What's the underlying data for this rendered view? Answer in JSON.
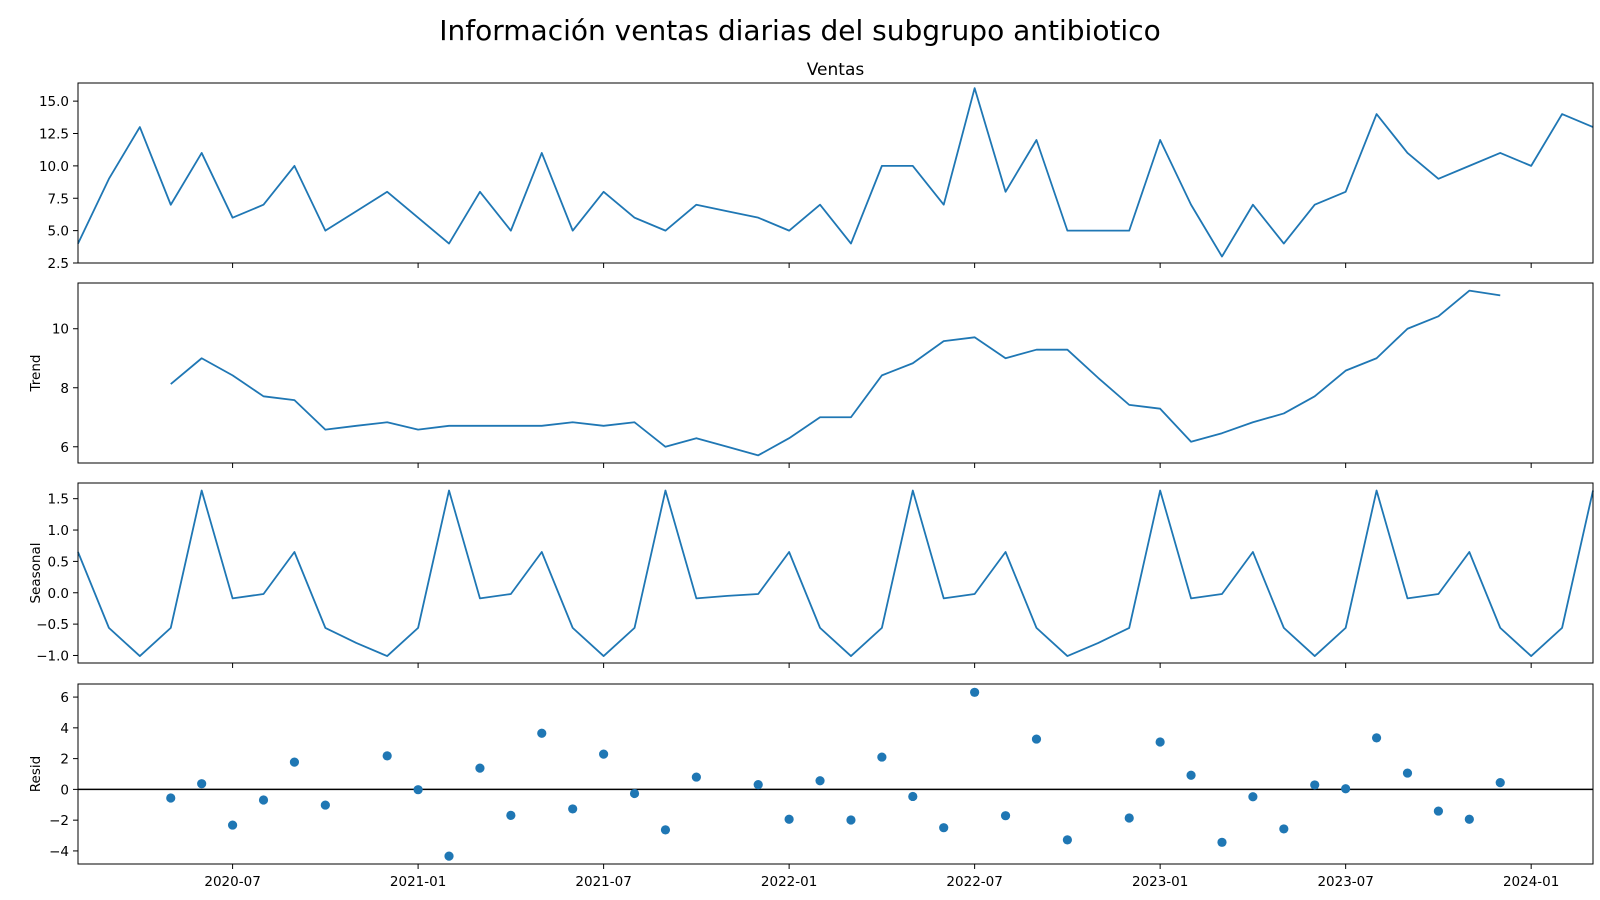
{
  "figure": {
    "title": "Información ventas diarias del subgrupo antibiotico"
  },
  "chart_data": [
    {
      "type": "line",
      "title": "Ventas",
      "ylabel": "",
      "xlabel": "",
      "ylim": [
        2.5,
        16.4
      ],
      "yticks": [
        "2.5",
        "5.0",
        "7.5",
        "10.0",
        "12.5",
        "15.0"
      ],
      "x": [
        "2020-02",
        "2020-03",
        "2020-04",
        "2020-05",
        "2020-06",
        "2020-07",
        "2020-08",
        "2020-09",
        "2020-10",
        "2020-11",
        "2020-12",
        "2021-01",
        "2021-02",
        "2021-03",
        "2021-04",
        "2021-05",
        "2021-06",
        "2021-07",
        "2021-08",
        "2021-09",
        "2021-10",
        "2021-11",
        "2021-12",
        "2022-01",
        "2022-02",
        "2022-03",
        "2022-04",
        "2022-05",
        "2022-06",
        "2022-07",
        "2022-08",
        "2022-09",
        "2022-10",
        "2022-11",
        "2022-12",
        "2023-01",
        "2023-02",
        "2023-03",
        "2023-04",
        "2023-05",
        "2023-06",
        "2023-07",
        "2023-08",
        "2023-09",
        "2023-10",
        "2023-11",
        "2023-12",
        "2024-01",
        "2024-02",
        "2024-03"
      ],
      "values": [
        4,
        9,
        13,
        7,
        11,
        6,
        7,
        10,
        5,
        6.5,
        8,
        6,
        4,
        8,
        5,
        11,
        5,
        8,
        6,
        5,
        7,
        6.5,
        6,
        5,
        7,
        4,
        10,
        10,
        7,
        16,
        8,
        12,
        5,
        5,
        5,
        12,
        7,
        3,
        7,
        4,
        7,
        8,
        14,
        11,
        9,
        10,
        11,
        10,
        14,
        13
      ]
    },
    {
      "type": "line",
      "title": "",
      "ylabel": "Trend",
      "xlabel": "",
      "ylim": [
        5.45,
        11.55
      ],
      "yticks": [
        "6",
        "8",
        "10"
      ],
      "x": [
        "2020-05",
        "2020-06",
        "2020-07",
        "2020-08",
        "2020-09",
        "2020-10",
        "2020-11",
        "2020-12",
        "2021-01",
        "2021-02",
        "2021-03",
        "2021-04",
        "2021-05",
        "2021-06",
        "2021-07",
        "2021-08",
        "2021-09",
        "2021-10",
        "2021-11",
        "2021-12",
        "2022-01",
        "2022-02",
        "2022-03",
        "2022-04",
        "2022-05",
        "2022-06",
        "2022-07",
        "2022-08",
        "2022-09",
        "2022-10",
        "2022-11",
        "2022-12",
        "2023-01",
        "2023-02",
        "2023-03",
        "2023-04",
        "2023-05",
        "2023-06",
        "2023-07",
        "2023-08",
        "2023-09",
        "2023-10",
        "2023-11",
        "2023-12"
      ],
      "values": [
        8.125,
        9.0,
        8.42,
        7.71,
        7.58,
        6.58,
        6.71,
        6.83,
        6.58,
        6.71,
        6.71,
        6.71,
        6.71,
        6.83,
        6.71,
        6.83,
        6.0,
        6.29,
        6.0,
        5.71,
        6.29,
        7.0,
        7.0,
        8.42,
        8.83,
        9.58,
        9.71,
        9.0,
        9.29,
        9.29,
        8.33,
        7.42,
        7.29,
        6.17,
        6.46,
        6.83,
        7.13,
        7.71,
        8.58,
        9.0,
        10.0,
        10.42,
        11.29,
        11.13
      ]
    },
    {
      "type": "line",
      "title": "",
      "ylabel": "Seasonal",
      "xlabel": "",
      "ylim": [
        -1.12,
        1.75
      ],
      "yticks": [
        "−1.0",
        "−0.5",
        "0.0",
        "0.5",
        "1.0",
        "1.5"
      ],
      "x": [
        "2020-02",
        "2020-03",
        "2020-04",
        "2020-05",
        "2020-06",
        "2020-07",
        "2020-08",
        "2020-09",
        "2020-10",
        "2020-11",
        "2020-12",
        "2021-01",
        "2021-02",
        "2021-03",
        "2021-04",
        "2021-05",
        "2021-06",
        "2021-07",
        "2021-08",
        "2021-09",
        "2021-10",
        "2021-11",
        "2021-12",
        "2022-01",
        "2022-02",
        "2022-03",
        "2022-04",
        "2022-05",
        "2022-06",
        "2022-07",
        "2022-08",
        "2022-09",
        "2022-10",
        "2022-11",
        "2022-12",
        "2023-01",
        "2023-02",
        "2023-03",
        "2023-04",
        "2023-05",
        "2023-06",
        "2023-07",
        "2023-08",
        "2023-09",
        "2023-10",
        "2023-11",
        "2023-12",
        "2024-01",
        "2024-02",
        "2024-03"
      ],
      "values": [
        0.65,
        -0.56,
        -1.01,
        -0.56,
        1.63,
        -0.09,
        -0.02,
        0.65,
        -0.56,
        -0.8,
        -1.01,
        -0.56,
        1.63,
        -0.09,
        -0.02,
        0.65,
        -0.56,
        -1.01,
        -0.56,
        1.63,
        -0.09,
        -0.05,
        -0.02,
        0.65,
        -0.56,
        -1.01,
        -0.56,
        1.63,
        -0.09,
        -0.02,
        0.65,
        -0.56,
        -1.01,
        -0.8,
        -0.56,
        1.63,
        -0.09,
        -0.02,
        0.65,
        -0.56,
        -1.01,
        -0.56,
        1.63,
        -0.09,
        -0.02,
        0.65,
        -0.56,
        -1.01,
        -0.56,
        1.63
      ]
    },
    {
      "type": "scatter",
      "title": "",
      "ylabel": "Resid",
      "xlabel": "",
      "ylim": [
        -4.85,
        6.85
      ],
      "yticks": [
        "−4",
        "−2",
        "0",
        "2",
        "4",
        "6"
      ],
      "x": [
        "2020-05",
        "2020-06",
        "2020-07",
        "2020-08",
        "2020-09",
        "2020-10",
        "2020-12",
        "2021-01",
        "2021-02",
        "2021-03",
        "2021-04",
        "2021-05",
        "2021-06",
        "2021-07",
        "2021-08",
        "2021-09",
        "2021-10",
        "2021-12",
        "2022-01",
        "2022-02",
        "2022-03",
        "2022-04",
        "2022-05",
        "2022-06",
        "2022-07",
        "2022-08",
        "2022-09",
        "2022-10",
        "2022-12",
        "2023-01",
        "2023-02",
        "2023-03",
        "2023-04",
        "2023-05",
        "2023-06",
        "2023-07",
        "2023-08",
        "2023-09",
        "2023-10",
        "2023-11",
        "2023-12"
      ],
      "values": [
        -0.56,
        0.37,
        -2.32,
        -0.69,
        1.77,
        -1.02,
        2.18,
        -0.02,
        -4.34,
        1.38,
        -1.69,
        3.65,
        -1.27,
        2.29,
        -0.27,
        -2.63,
        0.8,
        0.31,
        -1.94,
        0.56,
        -1.99,
        2.1,
        -0.46,
        -2.49,
        6.31,
        -1.71,
        3.27,
        -3.28,
        -1.86,
        3.08,
        0.92,
        -3.44,
        -0.48,
        -2.57,
        0.29,
        0.04,
        3.35,
        1.06,
        -1.41,
        -1.94,
        0.44
      ],
      "zero_line": 0
    }
  ],
  "x_axis": {
    "start": "2020-02",
    "end": "2024-03",
    "ticks": [
      "2020-07",
      "2021-01",
      "2021-07",
      "2022-01",
      "2022-07",
      "2023-01",
      "2023-07",
      "2024-01"
    ]
  },
  "colors": {
    "series": "#1f77b4",
    "axis": "#000000",
    "background": "#ffffff"
  }
}
